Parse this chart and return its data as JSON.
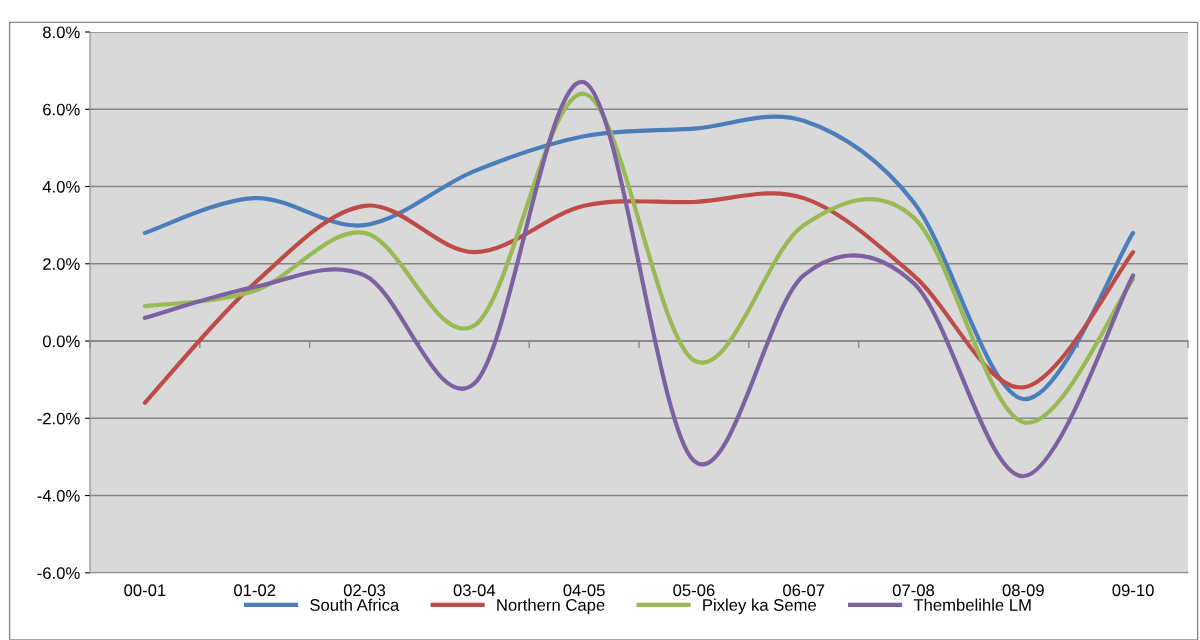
{
  "chart_data": {
    "type": "line",
    "categories": [
      "00-01",
      "01-02",
      "02-03",
      "03-04",
      "04-05",
      "05-06",
      "06-07",
      "07-08",
      "08-09",
      "09-10"
    ],
    "series": [
      {
        "name": "South Africa",
        "color": "#4a7ebb",
        "values": [
          2.8,
          3.7,
          3.0,
          4.4,
          5.3,
          5.5,
          5.7,
          3.6,
          -1.5,
          2.8
        ]
      },
      {
        "name": "Northern Cape",
        "color": "#be4b48",
        "values": [
          -1.6,
          1.5,
          3.5,
          2.3,
          3.5,
          3.6,
          3.7,
          1.7,
          -1.2,
          2.3
        ]
      },
      {
        "name": "Pixley ka Seme",
        "color": "#98b954",
        "values": [
          0.9,
          1.3,
          2.8,
          0.4,
          6.4,
          -0.5,
          3.0,
          3.2,
          -2.1,
          1.6
        ]
      },
      {
        "name": "Thembelihle LM",
        "color": "#7d60a0",
        "values": [
          0.6,
          1.4,
          1.7,
          -1.1,
          6.7,
          -3.1,
          1.7,
          1.5,
          -3.5,
          1.7
        ]
      }
    ],
    "ylim": [
      -6,
      8
    ],
    "yticks": [
      {
        "value": -6,
        "label": "-6.0%"
      },
      {
        "value": -4,
        "label": "-4.0%"
      },
      {
        "value": -2,
        "label": "-2.0%"
      },
      {
        "value": 0,
        "label": "0.0%"
      },
      {
        "value": 2,
        "label": "2.0%"
      },
      {
        "value": 4,
        "label": "4.0%"
      },
      {
        "value": 6,
        "label": "6.0%"
      },
      {
        "value": 8,
        "label": "8.0%"
      }
    ],
    "grid": "y",
    "legend": "bottom",
    "marker": "none",
    "line_style": "solid"
  }
}
